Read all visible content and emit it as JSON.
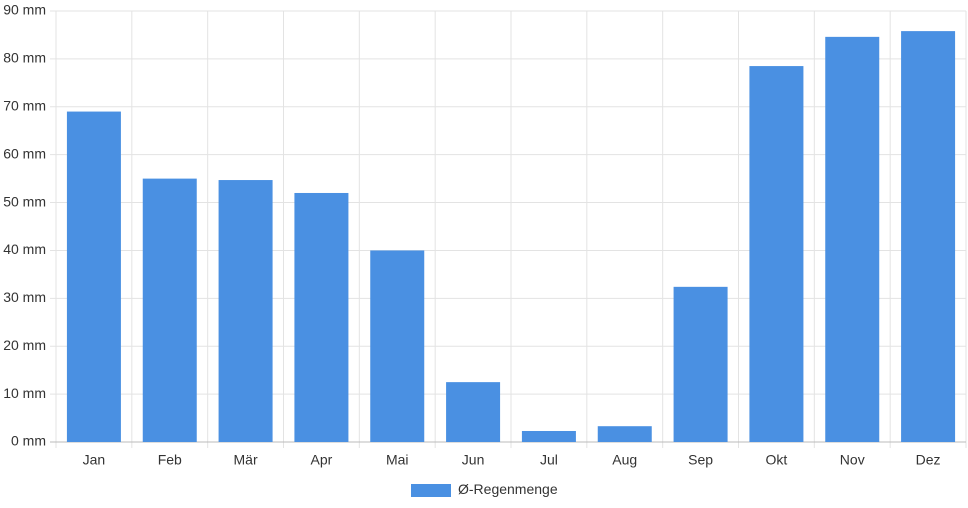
{
  "chart_data": {
    "type": "bar",
    "categories": [
      "Jan",
      "Feb",
      "Mär",
      "Apr",
      "Mai",
      "Jun",
      "Jul",
      "Aug",
      "Sep",
      "Okt",
      "Nov",
      "Dez"
    ],
    "series": [
      {
        "name": "Ø-Regenmenge",
        "color": "#4a90e2",
        "values": [
          69,
          55,
          54.7,
          52,
          40,
          12.5,
          2.3,
          3.3,
          32.4,
          78.5,
          84.6,
          85.8
        ]
      }
    ],
    "ylim": [
      0,
      90
    ],
    "yticks": [
      {
        "value": 0,
        "label": "0 mm"
      },
      {
        "value": 10,
        "label": "10 mm"
      },
      {
        "value": 20,
        "label": "20 mm"
      },
      {
        "value": 30,
        "label": "30 mm"
      },
      {
        "value": 40,
        "label": "40 mm"
      },
      {
        "value": 50,
        "label": "50 mm"
      },
      {
        "value": 60,
        "label": "60 mm"
      },
      {
        "value": 70,
        "label": "70 mm"
      },
      {
        "value": 80,
        "label": "80 mm"
      },
      {
        "value": 90,
        "label": "90 mm"
      }
    ],
    "grid": true,
    "legend": "bottom"
  }
}
